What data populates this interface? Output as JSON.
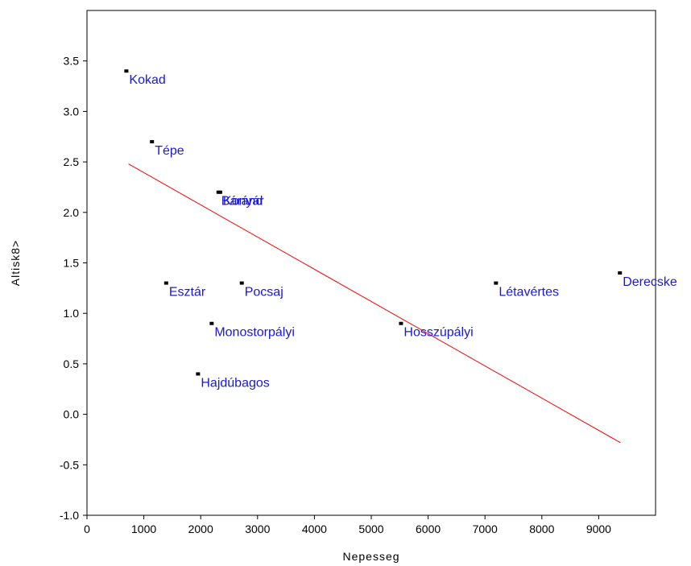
{
  "chart_data": {
    "type": "scatter",
    "title": "",
    "xlabel": "Nepesseg",
    "ylabel": "Altisk8>",
    "xlim": [
      0,
      10000
    ],
    "ylim": [
      -1.0,
      4.0
    ],
    "xticks": [
      "0",
      "1000",
      "2000",
      "3000",
      "4000",
      "5000",
      "6000",
      "7000",
      "8000",
      "9000"
    ],
    "yticks": [
      "-1.0",
      "-0.5",
      "0.0",
      "0.5",
      "1.0",
      "1.5",
      "2.0",
      "2.5",
      "3.0",
      "3.5"
    ],
    "points": [
      {
        "label": "Kokad",
        "x": 700,
        "y": 3.4
      },
      {
        "label": "Tépe",
        "x": 1150,
        "y": 2.7
      },
      {
        "label": "Báránd",
        "x": 2320,
        "y": 2.2
      },
      {
        "label": "Konyár",
        "x": 2350,
        "y": 2.2
      },
      {
        "label": "Esztár",
        "x": 1400,
        "y": 1.3
      },
      {
        "label": "Pocsaj",
        "x": 2730,
        "y": 1.3
      },
      {
        "label": "Monostorpályi",
        "x": 2200,
        "y": 0.9
      },
      {
        "label": "Hajdúbagos",
        "x": 1960,
        "y": 0.4
      },
      {
        "label": "Hosszúpályi",
        "x": 5530,
        "y": 0.9
      },
      {
        "label": "Létavértes",
        "x": 7200,
        "y": 1.3
      },
      {
        "label": "Derecske",
        "x": 9380,
        "y": 1.4
      }
    ],
    "fit_line": {
      "x": [
        730,
        9380
      ],
      "y": [
        2.48,
        -0.28
      ]
    },
    "grid": false,
    "legend": "none",
    "colors": {
      "point": "#000000",
      "label": "#1a1acc",
      "fit_line": "#ff0000",
      "frame": "#000000"
    }
  }
}
